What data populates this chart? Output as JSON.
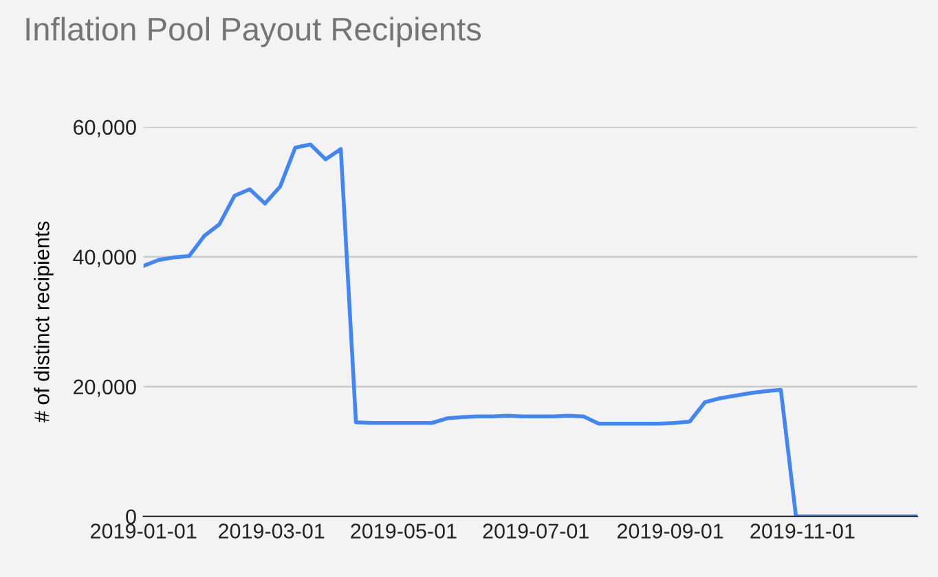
{
  "chart_data": {
    "type": "line",
    "title": "Inflation Pool Payout Recipients",
    "ylabel": "# of distinct recipients",
    "x": [
      "2019-01-01",
      "2019-01-08",
      "2019-01-15",
      "2019-01-22",
      "2019-01-29",
      "2019-02-05",
      "2019-02-12",
      "2019-02-19",
      "2019-02-26",
      "2019-03-05",
      "2019-03-12",
      "2019-03-19",
      "2019-03-26",
      "2019-04-02",
      "2019-04-09",
      "2019-04-16",
      "2019-04-23",
      "2019-04-30",
      "2019-05-07",
      "2019-05-14",
      "2019-05-21",
      "2019-05-28",
      "2019-06-04",
      "2019-06-11",
      "2019-06-18",
      "2019-06-25",
      "2019-07-02",
      "2019-07-09",
      "2019-07-16",
      "2019-07-23",
      "2019-07-30",
      "2019-08-06",
      "2019-08-13",
      "2019-08-20",
      "2019-08-27",
      "2019-09-03",
      "2019-09-10",
      "2019-09-17",
      "2019-09-24",
      "2019-10-01",
      "2019-10-08",
      "2019-10-15",
      "2019-10-22",
      "2019-10-29",
      "2019-11-05",
      "2019-11-12",
      "2019-11-19",
      "2019-11-26",
      "2019-12-03",
      "2019-12-10",
      "2019-12-17",
      "2019-12-24"
    ],
    "series": [
      {
        "color": "#4285f4",
        "values": [
          38600,
          39500,
          39900,
          40100,
          43200,
          45000,
          49400,
          50400,
          48200,
          50800,
          56800,
          57300,
          55000,
          56600,
          14500,
          14400,
          14400,
          14400,
          14400,
          14400,
          15100,
          15300,
          15400,
          15400,
          15500,
          15400,
          15400,
          15400,
          15500,
          15400,
          14300,
          14300,
          14300,
          14300,
          14300,
          14400,
          14600,
          17600,
          18200,
          18600,
          19000,
          19300,
          19500,
          0,
          0,
          0,
          0,
          0,
          0,
          0,
          0,
          0
        ]
      }
    ],
    "xlim": [
      "2019-01-01",
      "2019-12-24"
    ],
    "xticks": [
      "2019-01-01",
      "2019-03-01",
      "2019-05-01",
      "2019-07-01",
      "2019-09-01",
      "2019-11-01"
    ],
    "ylim": [
      0,
      60000
    ],
    "yticks": [
      {
        "value": 0,
        "label": "0"
      },
      {
        "value": 20000,
        "label": "20,000"
      },
      {
        "value": 40000,
        "label": "40,000"
      },
      {
        "value": 60000,
        "label": "60,000"
      }
    ],
    "grid": "y",
    "marker": "none",
    "line_style": "solid"
  }
}
